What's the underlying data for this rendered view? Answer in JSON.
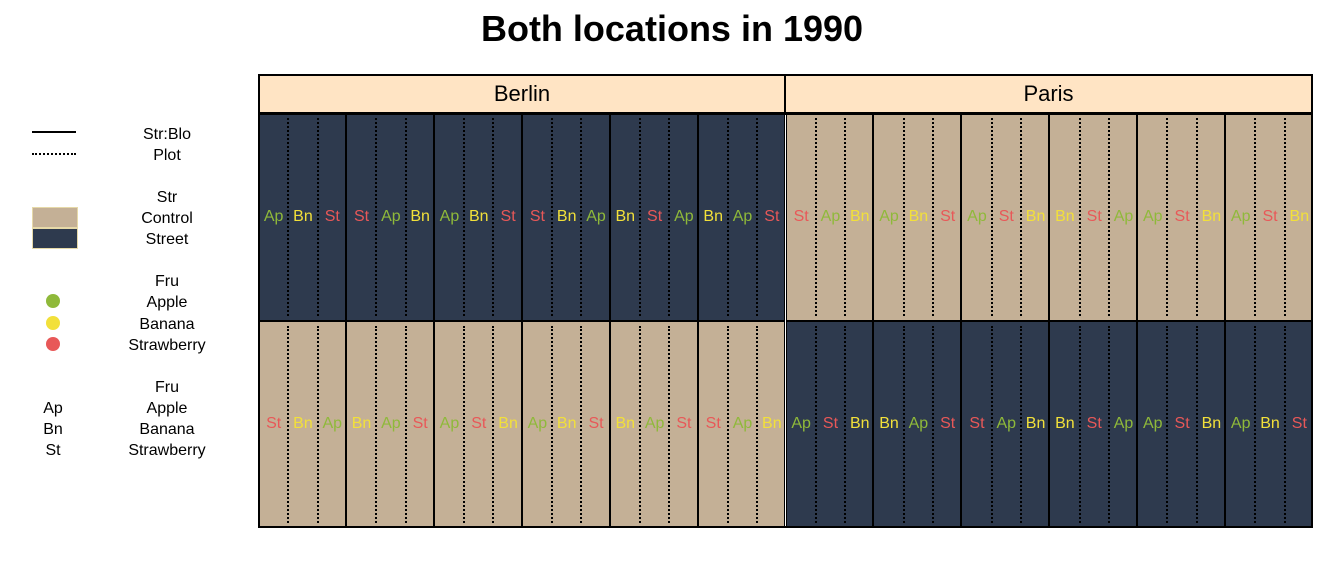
{
  "title": "Both locations in 1990",
  "colors": {
    "control": "#c4b096",
    "street": "#2e3a4e",
    "strip": "#ffe4c4",
    "apple": "#8fb93a",
    "banana": "#f2e03a",
    "strawberry": "#e85858"
  },
  "legend": {
    "block": {
      "title": "Str:Blo",
      "subtitle": "Plot"
    },
    "street_factor": {
      "title": "Str",
      "control": "Control",
      "street": "Street"
    },
    "fruit_color": {
      "title": "Fru",
      "items": [
        "Apple",
        "Banana",
        "Strawberry"
      ]
    },
    "fruit_abbr": {
      "title": "Fru",
      "abbr": [
        "Ap",
        "Bn",
        "St"
      ],
      "items": [
        "Apple",
        "Banana",
        "Strawberry"
      ]
    }
  },
  "chart_data": {
    "type": "table",
    "title": "Both locations in 1990",
    "facets": [
      "Berlin",
      "Paris"
    ],
    "rows": [
      {
        "treatment": [
          "street",
          "street",
          "street",
          "street",
          "street",
          "street",
          "control",
          "control",
          "control",
          "control",
          "control",
          "control"
        ],
        "labels": [
          [
            "Ap",
            "Bn",
            "St"
          ],
          [
            "St",
            "Ap",
            "Bn"
          ],
          [
            "Ap",
            "Bn",
            "St"
          ],
          [
            "St",
            "Bn",
            "Ap"
          ],
          [
            "Bn",
            "St",
            "Ap"
          ],
          [
            "Bn",
            "Ap",
            "St"
          ],
          [
            "St",
            "Ap",
            "Bn"
          ],
          [
            "Ap",
            "Bn",
            "St"
          ],
          [
            "Ap",
            "St",
            "Bn"
          ],
          [
            "Bn",
            "St",
            "Ap"
          ],
          [
            "Ap",
            "St",
            "Bn"
          ],
          [
            "Ap",
            "St",
            "Bn"
          ]
        ]
      },
      {
        "treatment": [
          "control",
          "control",
          "control",
          "control",
          "control",
          "control",
          "street",
          "street",
          "street",
          "street",
          "street",
          "street"
        ],
        "labels": [
          [
            "St",
            "Bn",
            "Ap"
          ],
          [
            "Bn",
            "Ap",
            "St"
          ],
          [
            "Ap",
            "St",
            "Bn"
          ],
          [
            "Ap",
            "Bn",
            "St"
          ],
          [
            "Bn",
            "Ap",
            "St"
          ],
          [
            "St",
            "Ap",
            "Bn"
          ],
          [
            "Ap",
            "St",
            "Bn"
          ],
          [
            "Bn",
            "Ap",
            "St"
          ],
          [
            "St",
            "Ap",
            "Bn"
          ],
          [
            "Bn",
            "St",
            "Ap"
          ],
          [
            "Ap",
            "St",
            "Bn"
          ],
          [
            "Ap",
            "Bn",
            "St"
          ]
        ]
      }
    ]
  }
}
